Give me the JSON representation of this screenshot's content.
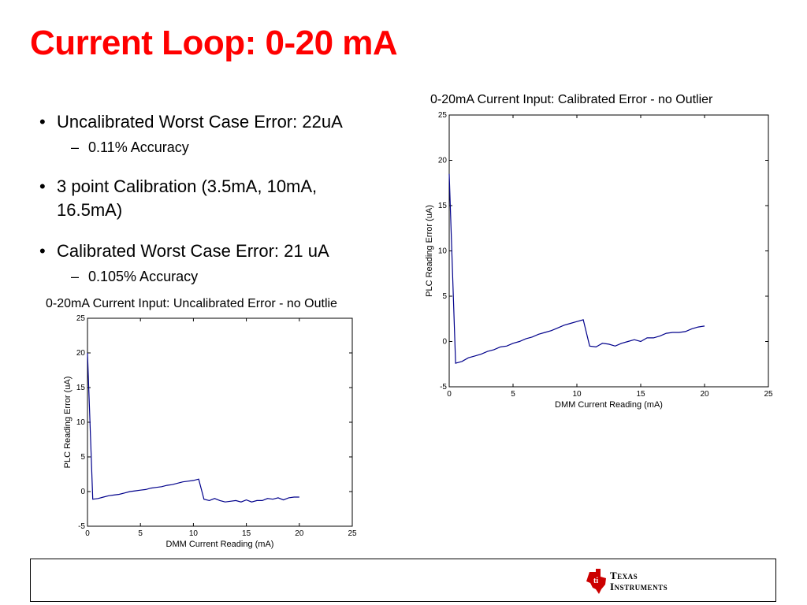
{
  "slide": {
    "title": "Current Loop: 0-20 mA",
    "bullets": [
      {
        "text": "Uncalibrated Worst Case Error: 22uA",
        "sub": "0.11% Accuracy"
      },
      {
        "text": "3 point Calibration (3.5mA, 10mA, 16.5mA)",
        "sub": ""
      },
      {
        "text": "Calibrated Worst Case Error: 21 uA",
        "sub": "0.105% Accuracy"
      }
    ],
    "bullet_mark": "•",
    "sub_mark": "–"
  },
  "logo": {
    "line1": "Texas",
    "line2": "Instruments",
    "color": "#cc0000"
  },
  "colors": {
    "title": "#ff0000",
    "series": "#00008b"
  },
  "chart_data": [
    {
      "type": "line",
      "title": "0-20mA Current Input: Calibrated Error - no Outlier",
      "xlabel": "DMM Current Reading (mA)",
      "ylabel": "PLC Reading Error (uA)",
      "xlim": [
        0,
        25
      ],
      "ylim": [
        -5,
        25
      ],
      "xticks": [
        0,
        5,
        10,
        15,
        20,
        25
      ],
      "yticks": [
        -5,
        0,
        5,
        10,
        15,
        20,
        25
      ],
      "grid": false,
      "series": [
        {
          "x": [
            0,
            0.5,
            1.0,
            1.5,
            2.0,
            2.5,
            3.0,
            3.5,
            4.0,
            4.5,
            5.0,
            5.5,
            6.0,
            6.5,
            7.0,
            7.5,
            8.0,
            8.5,
            9.0,
            9.5,
            10.0,
            10.5,
            11.0,
            11.5,
            12.0,
            12.5,
            13.0,
            13.5,
            14.0,
            14.5,
            15.0,
            15.5,
            16.0,
            16.5,
            17.0,
            17.5,
            18.0,
            18.5,
            19.0,
            19.5,
            20.0
          ],
          "y": [
            18.5,
            -2.4,
            -2.2,
            -1.8,
            -1.6,
            -1.4,
            -1.1,
            -0.9,
            -0.6,
            -0.5,
            -0.2,
            0.0,
            0.3,
            0.5,
            0.8,
            1.0,
            1.2,
            1.5,
            1.8,
            2.0,
            2.2,
            2.4,
            -0.5,
            -0.6,
            -0.2,
            -0.3,
            -0.5,
            -0.2,
            0.0,
            0.2,
            0.0,
            0.4,
            0.4,
            0.6,
            0.9,
            1.0,
            1.0,
            1.1,
            1.4,
            1.6,
            1.7
          ]
        }
      ]
    },
    {
      "type": "line",
      "title": "0-20mA Current Input: Uncalibrated Error - no Outlie",
      "xlabel": "DMM Current Reading (mA)",
      "ylabel": "PLC Reading Error (uA)",
      "xlim": [
        0,
        25
      ],
      "ylim": [
        -5,
        25
      ],
      "xticks": [
        0,
        5,
        10,
        15,
        20,
        25
      ],
      "yticks": [
        -5,
        0,
        5,
        10,
        15,
        20,
        25
      ],
      "grid": false,
      "series": [
        {
          "x": [
            0,
            0.5,
            1.0,
            1.5,
            2.0,
            2.5,
            3.0,
            3.5,
            4.0,
            4.5,
            5.0,
            5.5,
            6.0,
            6.5,
            7.0,
            7.5,
            8.0,
            8.5,
            9.0,
            9.5,
            10.0,
            10.5,
            11.0,
            11.5,
            12.0,
            12.5,
            13.0,
            13.5,
            14.0,
            14.5,
            15.0,
            15.5,
            16.0,
            16.5,
            17.0,
            17.5,
            18.0,
            18.5,
            19.0,
            19.5,
            20.0
          ],
          "y": [
            20.0,
            -1.1,
            -1.0,
            -0.8,
            -0.6,
            -0.5,
            -0.4,
            -0.2,
            0.0,
            0.1,
            0.2,
            0.3,
            0.5,
            0.6,
            0.7,
            0.9,
            1.0,
            1.2,
            1.4,
            1.5,
            1.6,
            1.8,
            -1.1,
            -1.3,
            -1.0,
            -1.3,
            -1.5,
            -1.4,
            -1.3,
            -1.5,
            -1.2,
            -1.5,
            -1.3,
            -1.3,
            -1.0,
            -1.1,
            -0.9,
            -1.2,
            -0.9,
            -0.8,
            -0.8
          ]
        }
      ]
    }
  ]
}
